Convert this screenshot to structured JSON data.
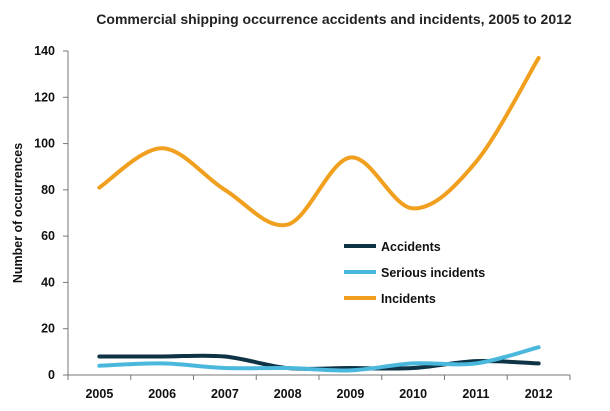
{
  "chart_data": {
    "type": "line",
    "title": "Commercial shipping occurrence accidents and incidents, 2005 to 2012",
    "xlabel": "",
    "ylabel": "Number of occurrences",
    "categories": [
      "2005",
      "2006",
      "2007",
      "2008",
      "2009",
      "2010",
      "2011",
      "2012"
    ],
    "ylim": [
      0,
      140
    ],
    "yticks": [
      0,
      20,
      40,
      60,
      80,
      100,
      120,
      140
    ],
    "grid": false,
    "legend_position": "center-right",
    "smooth": true,
    "series": [
      {
        "name": "Accidents",
        "color": "#0d3344",
        "values": [
          8,
          8,
          8,
          3,
          3,
          3,
          6,
          5
        ]
      },
      {
        "name": "Serious incidents",
        "color": "#4ab8dc",
        "values": [
          4,
          5,
          3,
          3,
          2,
          5,
          5,
          12
        ]
      },
      {
        "name": "Incidents",
        "color": "#f0a01e",
        "values": [
          81,
          98,
          80,
          65,
          94,
          72,
          92,
          137
        ]
      }
    ]
  }
}
